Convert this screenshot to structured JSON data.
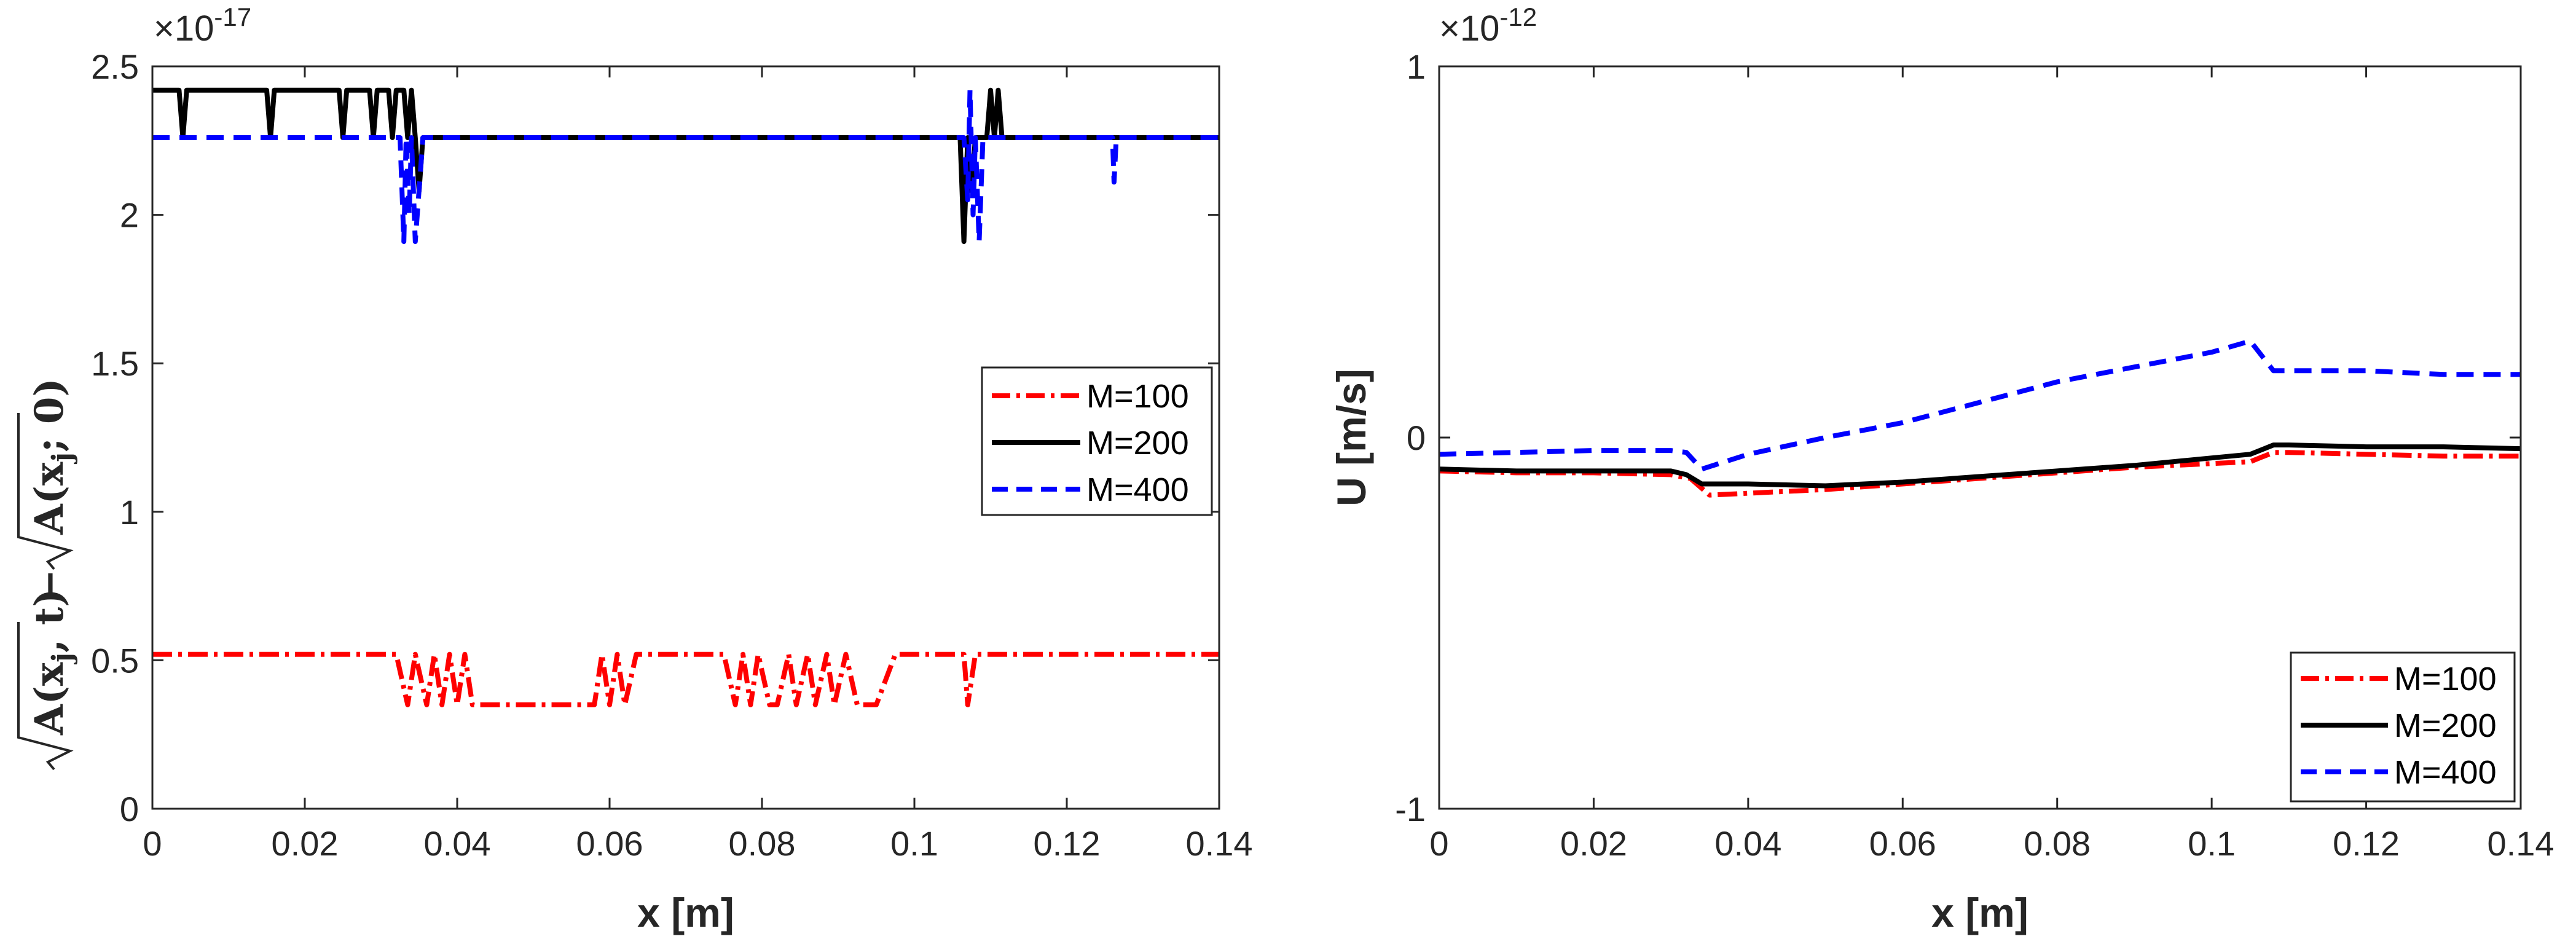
{
  "chart_data": [
    {
      "type": "line",
      "xlabel": "x [m]",
      "ylabel_parts": [
        "A(x",
        "j",
        ", t)",
        "A(x",
        "j",
        "; 0)"
      ],
      "y_multiplier_base": "×10",
      "y_multiplier_exp": "-17",
      "xlim": [
        0,
        0.14
      ],
      "ylim": [
        0,
        2.5
      ],
      "xticks": [
        0,
        0.02,
        0.04,
        0.06,
        0.08,
        0.1,
        0.12,
        0.14
      ],
      "xtick_labels": [
        "0",
        "0.02",
        "0.04",
        "0.06",
        "0.08",
        "0.1",
        "0.12",
        "0.14"
      ],
      "yticks": [
        0,
        0.5,
        1,
        1.5,
        2,
        2.5
      ],
      "ytick_labels": [
        "0",
        "0.5",
        "1",
        "1.5",
        "2",
        "2.5"
      ],
      "legend_position": "right",
      "series": [
        {
          "name": "M=100",
          "color": "#ff0000",
          "dash": "dashdot",
          "x": [
            0,
            0.032,
            0.0335,
            0.0345,
            0.036,
            0.037,
            0.038,
            0.039,
            0.04,
            0.041,
            0.042,
            0.0432,
            0.045,
            0.058,
            0.059,
            0.06,
            0.061,
            0.062,
            0.0635,
            0.075,
            0.0765,
            0.0775,
            0.0785,
            0.0795,
            0.081,
            0.082,
            0.0835,
            0.0845,
            0.086,
            0.087,
            0.0885,
            0.0895,
            0.091,
            0.0925,
            0.095,
            0.0975,
            0.1065,
            0.107,
            0.108,
            0.14
          ],
          "y": [
            0.52,
            0.52,
            0.35,
            0.52,
            0.35,
            0.52,
            0.35,
            0.52,
            0.35,
            0.52,
            0.35,
            0.35,
            0.35,
            0.35,
            0.52,
            0.35,
            0.52,
            0.35,
            0.52,
            0.52,
            0.35,
            0.52,
            0.35,
            0.52,
            0.35,
            0.35,
            0.52,
            0.35,
            0.52,
            0.35,
            0.52,
            0.35,
            0.52,
            0.35,
            0.35,
            0.52,
            0.52,
            0.35,
            0.52,
            0.52
          ]
        },
        {
          "name": "M=200",
          "color": "#000000",
          "dash": "solid",
          "x": [
            0,
            0.0035,
            0.004,
            0.0045,
            0.015,
            0.0155,
            0.016,
            0.0245,
            0.025,
            0.0255,
            0.0285,
            0.029,
            0.0295,
            0.031,
            0.0315,
            0.032,
            0.033,
            0.0335,
            0.034,
            0.0345,
            0.035,
            0.0355,
            0.106,
            0.1065,
            0.107,
            0.1075,
            0.108,
            0.1095,
            0.11,
            0.1105,
            0.111,
            0.1115,
            0.14
          ],
          "y": [
            2.42,
            2.42,
            2.26,
            2.42,
            2.42,
            2.26,
            2.42,
            2.42,
            2.26,
            2.42,
            2.42,
            2.26,
            2.42,
            2.42,
            2.26,
            2.42,
            2.42,
            2.26,
            2.42,
            2.26,
            2.08,
            2.26,
            2.26,
            1.91,
            2.26,
            2.08,
            2.26,
            2.26,
            2.42,
            2.26,
            2.42,
            2.26,
            2.26
          ]
        },
        {
          "name": "M=400",
          "color": "#0000ff",
          "dash": "dashed",
          "x": [
            0,
            0.0325,
            0.033,
            0.0333,
            0.0337,
            0.034,
            0.0345,
            0.0355,
            0.036,
            0.1065,
            0.107,
            0.1073,
            0.1077,
            0.108,
            0.1085,
            0.109,
            0.1095,
            0.126,
            0.1262,
            0.1265,
            0.14
          ],
          "y": [
            2.26,
            2.26,
            1.91,
            2.26,
            2.0,
            2.26,
            1.91,
            2.26,
            2.26,
            2.26,
            2.05,
            2.42,
            2.0,
            2.26,
            1.91,
            2.26,
            2.26,
            2.26,
            2.11,
            2.26,
            2.26
          ]
        }
      ]
    },
    {
      "type": "line",
      "xlabel": "x [m]",
      "ylabel": "U [m/s]",
      "y_multiplier_base": "×10",
      "y_multiplier_exp": "-12",
      "xlim": [
        0,
        0.14
      ],
      "ylim": [
        -1,
        1
      ],
      "xticks": [
        0,
        0.02,
        0.04,
        0.06,
        0.08,
        0.1,
        0.12,
        0.14
      ],
      "xtick_labels": [
        "0",
        "0.02",
        "0.04",
        "0.06",
        "0.08",
        "0.1",
        "0.12",
        "0.14"
      ],
      "yticks": [
        -1,
        0,
        1
      ],
      "ytick_labels": [
        "-1",
        "0",
        "1"
      ],
      "legend_position": "bottom-right",
      "series": [
        {
          "name": "M=100",
          "color": "#ff0000",
          "dash": "dashdot",
          "x": [
            0,
            0.01,
            0.02,
            0.03,
            0.0325,
            0.035,
            0.04,
            0.05,
            0.06,
            0.07,
            0.08,
            0.09,
            0.1,
            0.105,
            0.108,
            0.11,
            0.12,
            0.13,
            0.14
          ],
          "y": [
            -0.09,
            -0.095,
            -0.095,
            -0.1,
            -0.11,
            -0.155,
            -0.15,
            -0.14,
            -0.125,
            -0.11,
            -0.095,
            -0.08,
            -0.07,
            -0.065,
            -0.04,
            -0.04,
            -0.045,
            -0.05,
            -0.05
          ]
        },
        {
          "name": "M=200",
          "color": "#000000",
          "dash": "solid",
          "x": [
            0,
            0.01,
            0.02,
            0.03,
            0.032,
            0.034,
            0.04,
            0.05,
            0.06,
            0.07,
            0.08,
            0.09,
            0.1,
            0.105,
            0.108,
            0.11,
            0.12,
            0.13,
            0.14
          ],
          "y": [
            -0.085,
            -0.09,
            -0.09,
            -0.09,
            -0.1,
            -0.125,
            -0.125,
            -0.13,
            -0.12,
            -0.105,
            -0.09,
            -0.075,
            -0.055,
            -0.045,
            -0.02,
            -0.02,
            -0.025,
            -0.025,
            -0.03
          ]
        },
        {
          "name": "M=400",
          "color": "#0000ff",
          "dash": "dashed",
          "x": [
            0,
            0.01,
            0.02,
            0.03,
            0.032,
            0.034,
            0.04,
            0.05,
            0.06,
            0.07,
            0.08,
            0.09,
            0.1,
            0.105,
            0.108,
            0.11,
            0.12,
            0.13,
            0.14
          ],
          "y": [
            -0.045,
            -0.04,
            -0.035,
            -0.035,
            -0.04,
            -0.085,
            -0.045,
            0.0,
            0.04,
            0.095,
            0.15,
            0.19,
            0.23,
            0.26,
            0.18,
            0.18,
            0.18,
            0.17,
            0.17
          ]
        }
      ]
    }
  ]
}
